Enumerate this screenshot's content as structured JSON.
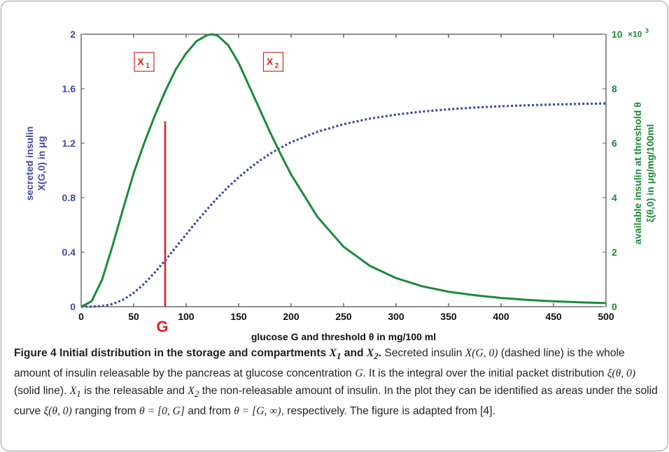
{
  "chart_data": {
    "type": "line",
    "xlabel": "glucose G and threshold θ in mg/100 ml",
    "xlim": [
      0,
      500
    ],
    "xticks": [
      0,
      50,
      100,
      150,
      200,
      250,
      300,
      350,
      400,
      450,
      500
    ],
    "left_axis": {
      "ylabel_line1": "secreted insulin",
      "ylabel_line2": "X(G,0) in μg",
      "ylim": [
        0,
        2
      ],
      "ticks": [
        "0",
        "0.4",
        "0.8",
        "1.2",
        "1.6",
        "2"
      ],
      "color": "#3d4aa6"
    },
    "right_axis": {
      "ylabel_line1": "available insulin at threshold θ",
      "ylabel_line2": "ξ(θ,0) in μg/mg/100ml",
      "ylim": [
        0,
        10
      ],
      "ticks": [
        "0",
        "2",
        "4",
        "6",
        "8",
        "10"
      ],
      "multiplier": "×10",
      "multiplier_exp": "3",
      "color": "#1a8a3a"
    },
    "series": [
      {
        "style": "dashed",
        "axis": "left",
        "color": "#3d4aa6",
        "x": [
          0,
          10,
          20,
          30,
          40,
          50,
          60,
          70,
          80,
          90,
          100,
          110,
          120,
          130,
          140,
          150,
          160,
          170,
          180,
          190,
          200,
          225,
          250,
          275,
          300,
          325,
          350,
          375,
          400,
          425,
          450,
          475,
          500
        ],
        "y": [
          0,
          0.0004,
          0.0048,
          0.0198,
          0.0512,
          0.1011,
          0.1684,
          0.2496,
          0.3397,
          0.4347,
          0.5308,
          0.6249,
          0.715,
          0.7997,
          0.8779,
          0.9494,
          1.0138,
          1.0713,
          1.1224,
          1.1674,
          1.2069,
          1.284,
          1.3397,
          1.3803,
          1.4102,
          1.4323,
          1.449,
          1.4616,
          1.4712,
          1.4785,
          1.4842,
          1.4886,
          1.492
        ]
      },
      {
        "style": "solid",
        "axis": "right",
        "color": "#1a8a3a",
        "x": [
          0,
          10,
          20,
          30,
          40,
          50,
          60,
          70,
          80,
          90,
          100,
          110,
          120,
          125,
          130,
          140,
          150,
          160,
          170,
          180,
          190,
          200,
          225,
          250,
          275,
          300,
          325,
          350,
          375,
          400,
          425,
          450,
          475,
          500
        ],
        "y": [
          0,
          0.2,
          1.0,
          2.25,
          3.6,
          4.9,
          6.0,
          7.0,
          7.9,
          8.7,
          9.3,
          9.75,
          9.97,
          10.0,
          9.95,
          9.6,
          8.95,
          8.1,
          7.25,
          6.4,
          5.6,
          4.85,
          3.3,
          2.2,
          1.5,
          1.05,
          0.75,
          0.55,
          0.42,
          0.32,
          0.25,
          0.2,
          0.16,
          0.13
        ]
      }
    ],
    "annotations": {
      "marker_x": 80,
      "marker_top": 6.8,
      "marker_label": "G",
      "marker_color": "#d8241c",
      "box1_base": "X",
      "box1_sub": "1",
      "box1_x": 60,
      "box1_y": 1.8,
      "box2_base": "X",
      "box2_sub": "2",
      "box2_x": 183,
      "box2_y": 1.8
    }
  },
  "caption": {
    "lead": "Figure 4 Initial distribution in the storage and compartments ",
    "lead_x1": "X",
    "lead_x1_sub": "1",
    "lead_and": " and ",
    "lead_x2": "X",
    "lead_x2_sub": "2",
    "lead_end": ".",
    "p1": " Secreted insulin ",
    "p1_math": "X",
    "p1_math2": "(G, 0)",
    "p2": " (dashed line) is the whole amount of insulin releasable by the pancreas at glucose concentration ",
    "p2_math": "G",
    "p3": ". It is the integral over the initial packet distribution ",
    "p3_math": "ξ(θ, 0)",
    "p4": " (solid line). ",
    "p4_x1": "X",
    "p4_x1_sub": "1",
    "p5": " is the releasable and ",
    "p5_x2": "X",
    "p5_x2_sub": "2",
    "p6": " the non-releasable amount of insulin. In the plot they can be identified as areas under the solid curve ",
    "p6_math": "ξ(θ, 0)",
    "p7": " ranging from ",
    "p7_math": "θ = [0, G]",
    "p8": " and from ",
    "p8_math": "θ = [G, ∞)",
    "p9": ", respectively. The figure is adapted from [4]."
  }
}
